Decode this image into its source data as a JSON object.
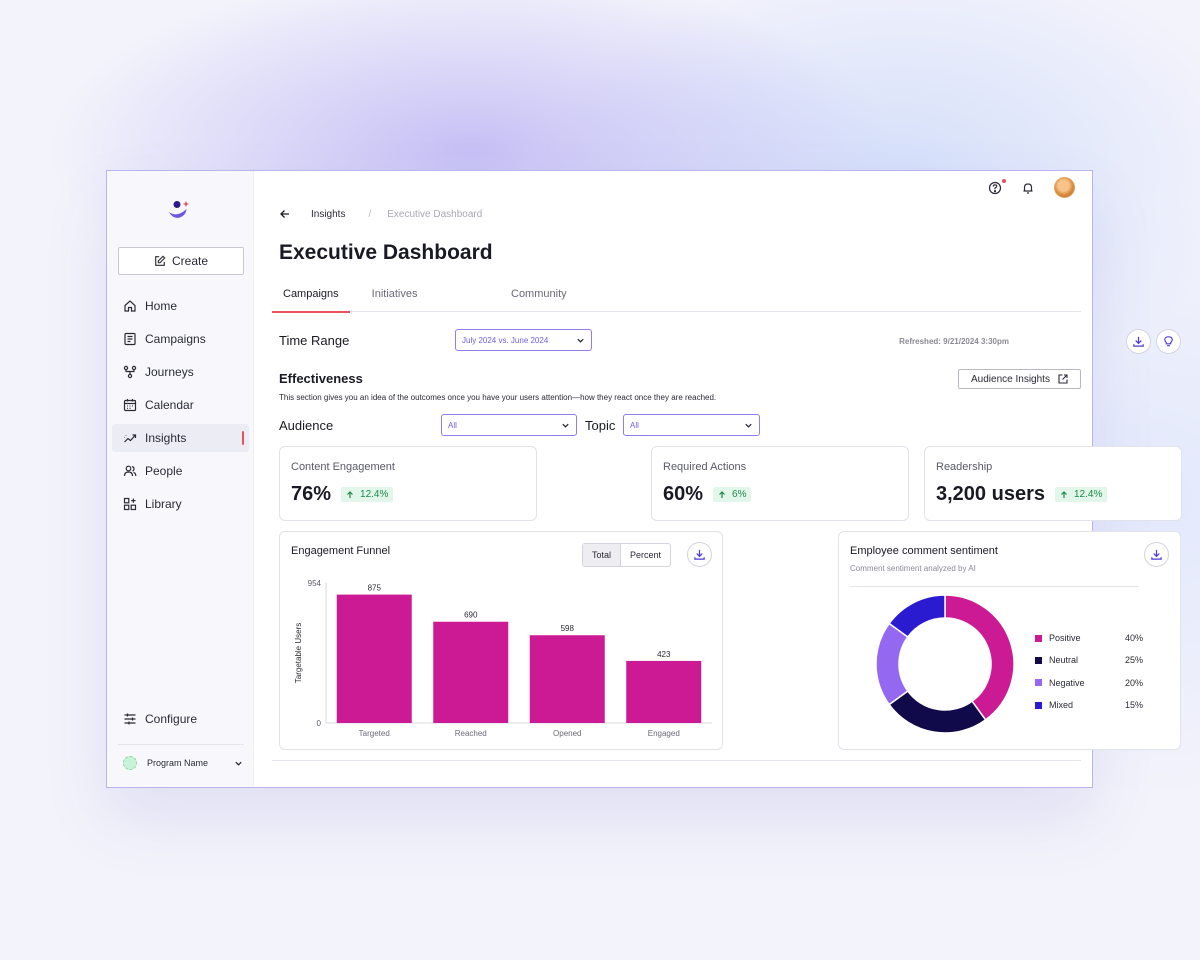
{
  "sidebar": {
    "create_label": "Create",
    "nav": [
      {
        "label": "Home",
        "icon": "home-icon"
      },
      {
        "label": "Campaigns",
        "icon": "document-icon"
      },
      {
        "label": "Journeys",
        "icon": "flow-icon"
      },
      {
        "label": "Calendar",
        "icon": "calendar-icon"
      },
      {
        "label": "Insights",
        "icon": "trend-icon",
        "active": true
      },
      {
        "label": "People",
        "icon": "people-icon"
      },
      {
        "label": "Library",
        "icon": "grid-plus-icon"
      }
    ],
    "configure_label": "Configure",
    "program_label": "Program Name"
  },
  "breadcrumb": {
    "parent": "Insights",
    "separator": "/",
    "current": "Executive Dashboard"
  },
  "page_title": "Executive Dashboard",
  "tabs": [
    {
      "label": "Campaigns",
      "active": true
    },
    {
      "label": "Initiatives"
    },
    {
      "label": "Community"
    }
  ],
  "filters": {
    "time_range_label": "Time Range",
    "time_range_value": "July 2024 vs. June 2024",
    "audience_label": "Audience",
    "audience_value": "All",
    "topic_label": "Topic",
    "topic_value": "All"
  },
  "refreshed": "Refreshed: 9/21/2024 3:30pm",
  "effectiveness": {
    "title": "Effectiveness",
    "description": "This section gives you an idea of the outcomes once you have your users attention—how they react once they are reached.",
    "audience_insights_label": "Audience Insights"
  },
  "kpis": [
    {
      "label": "Content Engagement",
      "value": "76%",
      "delta": "12.4%"
    },
    {
      "label": "Required Actions",
      "value": "60%",
      "delta": "6%"
    },
    {
      "label": "Readership",
      "value": "3,200 users",
      "delta": "12.4%"
    }
  ],
  "funnel": {
    "title": "Engagement Funnel",
    "toggle": [
      "Total",
      "Percent"
    ],
    "active_toggle": "Total"
  },
  "sentiment": {
    "title": "Employee comment sentiment",
    "subtitle": "Comment sentiment analyzed by AI"
  },
  "colors": {
    "accent": "#e8505b",
    "funnel_bar": "#cc1a94",
    "positive": "#cc1a94",
    "neutral": "#100a4a",
    "negative": "#9468f0",
    "mixed": "#2a1ad0",
    "select_border": "#8f7ef0",
    "delta_green": "#1d8a4c"
  },
  "chart_data": [
    {
      "type": "bar",
      "title": "Engagement Funnel",
      "categories": [
        "Targeted",
        "Reached",
        "Opened",
        "Engaged"
      ],
      "values": [
        875,
        690,
        598,
        423
      ],
      "ylabel": "Targetable Users",
      "xlabel": "",
      "ylim": [
        0,
        954
      ],
      "yticks": [
        0,
        954
      ],
      "grid": false
    },
    {
      "type": "pie",
      "title": "Employee comment sentiment",
      "subtitle": "Comment sentiment analyzed by AI",
      "donut": true,
      "labels": [
        "Positive",
        "Neutral",
        "Negative",
        "Mixed"
      ],
      "values": [
        40,
        25,
        20,
        15
      ],
      "value_labels": [
        "40%",
        "25%",
        "20%",
        "15%"
      ],
      "legend": "right"
    }
  ]
}
